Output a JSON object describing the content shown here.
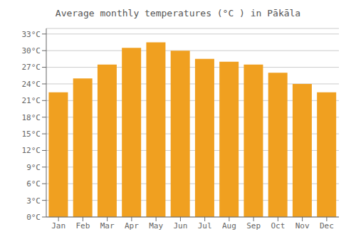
{
  "chart_data": {
    "type": "bar",
    "title": "Average monthly temperatures (°C ) in Pākāla",
    "categories": [
      "Jan",
      "Feb",
      "Mar",
      "Apr",
      "May",
      "Jun",
      "Jul",
      "Aug",
      "Sep",
      "Oct",
      "Nov",
      "Dec"
    ],
    "values": [
      22.5,
      25.0,
      27.5,
      30.5,
      31.5,
      30.0,
      28.5,
      28.0,
      27.5,
      26.0,
      24.0,
      22.5
    ],
    "color": "#F0A020",
    "ylim": [
      0,
      34
    ],
    "yticks": [
      {
        "value": 0,
        "label": "0°C"
      },
      {
        "value": 3,
        "label": "3°C"
      },
      {
        "value": 6,
        "label": "6°C"
      },
      {
        "value": 9,
        "label": "9°C"
      },
      {
        "value": 12,
        "label": "12°C"
      },
      {
        "value": 15,
        "label": "15°C"
      },
      {
        "value": 18,
        "label": "18°C"
      },
      {
        "value": 21,
        "label": "21°C"
      },
      {
        "value": 24,
        "label": "24°C"
      },
      {
        "value": 27,
        "label": "27°C"
      },
      {
        "value": 30,
        "label": "30°C"
      },
      {
        "value": 33,
        "label": "33°C"
      }
    ],
    "grid": true
  }
}
